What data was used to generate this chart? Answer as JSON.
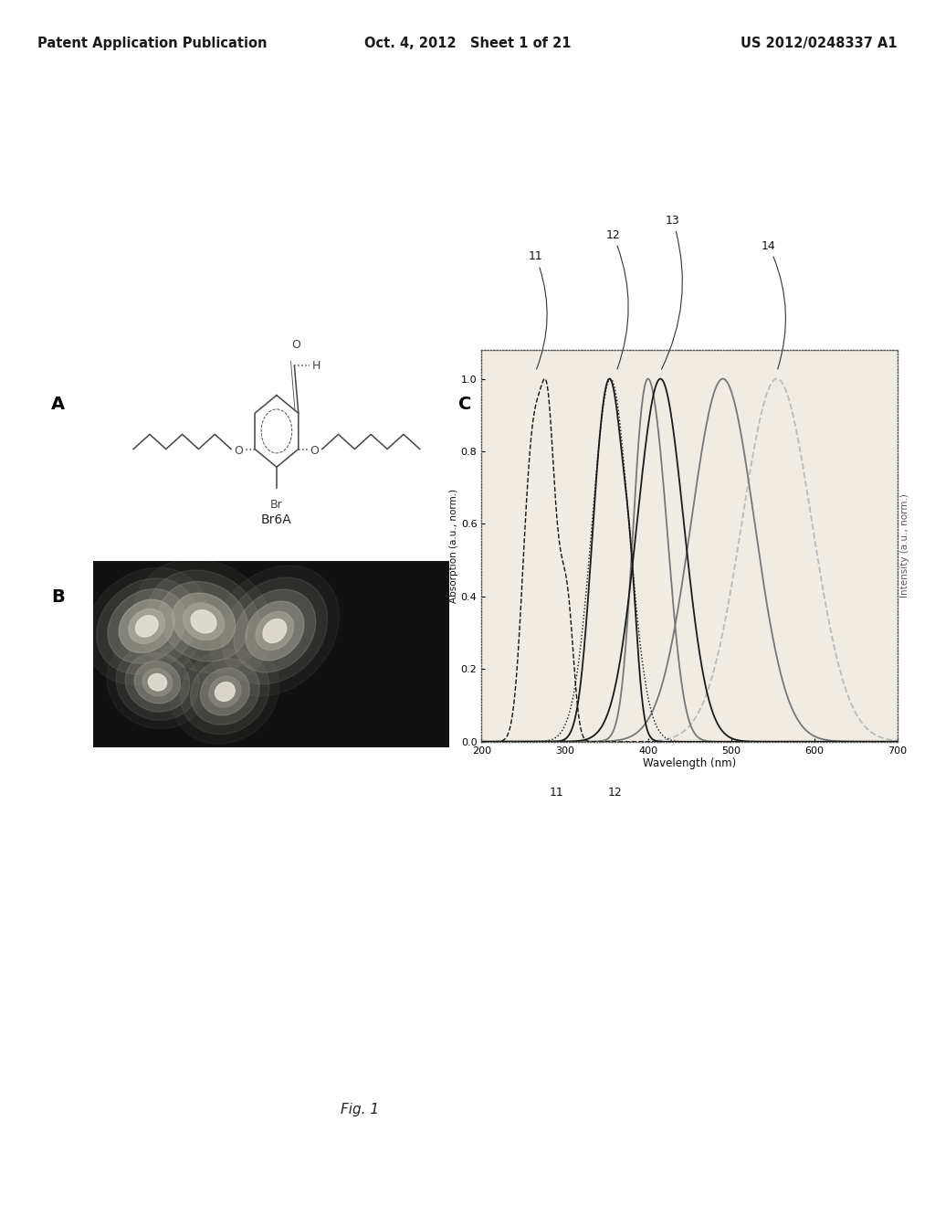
{
  "header_left": "Patent Application Publication",
  "header_mid": "Oct. 4, 2012   Sheet 1 of 21",
  "header_right": "US 2012/0248337 A1",
  "fig_label": "Fig. 1",
  "label_A": "A",
  "label_B": "B",
  "label_C": "C",
  "compound_name": "Br6A",
  "x_label": "Wavelength (nm)",
  "y_left_label": "Absorption (a.u., norm.)",
  "y_right_label": "Intensity (a.u., norm.)",
  "x_ticks": [
    200,
    300,
    400,
    500,
    600,
    700
  ],
  "bg_color": "#ffffff",
  "header_color": "#1a1a1a",
  "text_color": "#1a1a1a",
  "curve_labels_above": [
    {
      "label": "11",
      "x": 265,
      "xtip": 265
    },
    {
      "label": "12",
      "x": 360,
      "xtip": 360
    },
    {
      "label": "13",
      "x": 430,
      "xtip": 430
    },
    {
      "label": "14",
      "x": 540,
      "xtip": 540
    }
  ],
  "curve_labels_below": [
    {
      "label": "12",
      "x": 360
    },
    {
      "label": "11",
      "x": 290
    }
  ]
}
